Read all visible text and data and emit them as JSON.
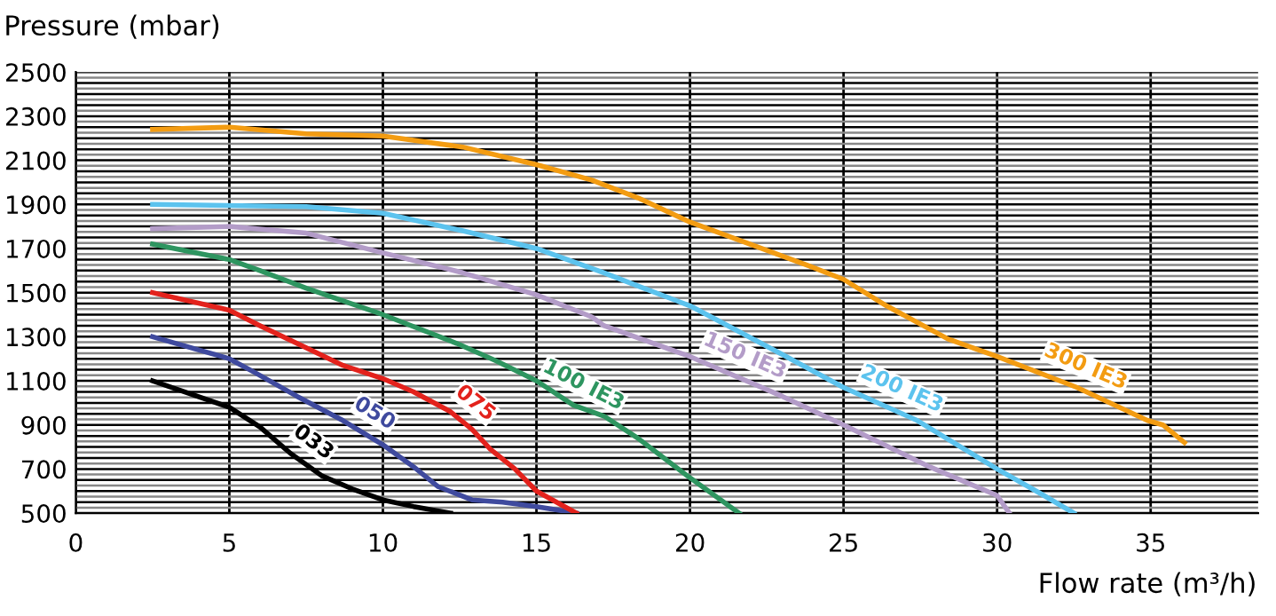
{
  "chart_data": {
    "type": "line",
    "ylabel": "Pressure (mbar)",
    "xlabel": "Flow rate (m³/h)",
    "xlim": [
      0,
      38.5
    ],
    "xticks": [
      0,
      5,
      10,
      15,
      20,
      25,
      30,
      35
    ],
    "ylim": [
      500,
      2500
    ],
    "yticks": [
      500,
      {
        "value": 525,
        "label": null
      },
      {
        "value": 550,
        "label": null
      },
      {
        "value": 575,
        "label": null
      },
      {
        "value": 600,
        "label": null
      },
      {
        "value": 625,
        "label": null
      },
      {
        "value": 650,
        "label": null
      },
      {
        "value": 675,
        "label": null
      },
      700,
      {
        "value": 725,
        "label": null
      },
      {
        "value": 750,
        "label": null
      },
      {
        "value": 775,
        "label": null
      },
      {
        "value": 800,
        "label": null
      },
      {
        "value": 825,
        "label": null
      },
      {
        "value": 850,
        "label": null
      },
      {
        "value": 875,
        "label": null
      },
      900,
      {
        "value": 925,
        "label": null
      },
      {
        "value": 950,
        "label": null
      },
      {
        "value": 975,
        "label": null
      },
      {
        "value": 1000,
        "label": null
      },
      {
        "value": 1025,
        "label": null
      },
      {
        "value": 1050,
        "label": null
      },
      {
        "value": 1075,
        "label": null
      },
      1100,
      {
        "value": 1125,
        "label": null
      },
      {
        "value": 1150,
        "label": null
      },
      {
        "value": 1175,
        "label": null
      },
      {
        "value": 1200,
        "label": null
      },
      {
        "value": 1225,
        "label": null
      },
      {
        "value": 1250,
        "label": null
      },
      {
        "value": 1275,
        "label": null
      },
      1300,
      {
        "value": 1325,
        "label": null
      },
      {
        "value": 1350,
        "label": null
      },
      {
        "value": 1375,
        "label": null
      },
      {
        "value": 1400,
        "label": null
      },
      {
        "value": 1425,
        "label": null
      },
      {
        "value": 1450,
        "label": null
      },
      {
        "value": 1475,
        "label": null
      },
      1500,
      {
        "value": 1525,
        "label": null
      },
      {
        "value": 1550,
        "label": null
      },
      {
        "value": 1575,
        "label": null
      },
      {
        "value": 1600,
        "label": null
      },
      {
        "value": 1625,
        "label": null
      },
      {
        "value": 1650,
        "label": null
      },
      {
        "value": 1675,
        "label": null
      },
      1700,
      {
        "value": 1725,
        "label": null
      },
      {
        "value": 1750,
        "label": null
      },
      {
        "value": 1775,
        "label": null
      },
      {
        "value": 1800,
        "label": null
      },
      {
        "value": 1825,
        "label": null
      },
      {
        "value": 1850,
        "label": null
      },
      {
        "value": 1875,
        "label": null
      },
      1900,
      {
        "value": 1925,
        "label": null
      },
      {
        "value": 1950,
        "label": null
      },
      {
        "value": 1975,
        "label": null
      },
      {
        "value": 2000,
        "label": null
      },
      {
        "value": 2025,
        "label": null
      },
      {
        "value": 2050,
        "label": null
      },
      {
        "value": 2075,
        "label": null
      },
      2100,
      {
        "value": 2125,
        "label": null
      },
      {
        "value": 2150,
        "label": null
      },
      {
        "value": 2175,
        "label": null
      },
      {
        "value": 2200,
        "label": null
      },
      {
        "value": 2225,
        "label": null
      },
      {
        "value": 2250,
        "label": null
      },
      {
        "value": 2275,
        "label": null
      },
      2300,
      {
        "value": 2325,
        "label": null
      },
      {
        "value": 2350,
        "label": null
      },
      {
        "value": 2375,
        "label": null
      },
      {
        "value": 2400,
        "label": null
      },
      {
        "value": 2425,
        "label": null
      },
      {
        "value": 2450,
        "label": null
      },
      {
        "value": 2475,
        "label": null
      },
      2500
    ],
    "grid": true,
    "legend": false,
    "marker": "none",
    "line_style": "solid",
    "series": [
      {
        "color": "#000000",
        "x": [
          2.5,
          5,
          6,
          7,
          8,
          9,
          10,
          11,
          12.2
        ],
        "values": [
          1100,
          980,
          890,
          770,
          670,
          610,
          560,
          530,
          500
        ]
      },
      {
        "color": "#3f4a9e",
        "x": [
          2.5,
          5,
          5.8,
          7.2,
          8.7,
          10,
          11,
          11.8,
          12.9,
          13.9,
          15,
          16.3
        ],
        "values": [
          1300,
          1200,
          1140,
          1030,
          920,
          810,
          710,
          620,
          560,
          550,
          530,
          500
        ]
      },
      {
        "color": "#e3221c",
        "x": [
          2.5,
          5,
          6,
          7.5,
          8.7,
          10,
          11,
          12.2,
          12.9,
          13.5,
          14.3,
          15,
          16.3
        ],
        "values": [
          1500,
          1420,
          1350,
          1250,
          1170,
          1110,
          1050,
          960,
          880,
          790,
          700,
          600,
          500
        ]
      },
      {
        "color": "#2e9560",
        "x": [
          2.5,
          5,
          6,
          7.5,
          10,
          12.4,
          13.7,
          15,
          16.2,
          17.2,
          18.3,
          20,
          21.6
        ],
        "values": [
          1720,
          1650,
          1600,
          1520,
          1400,
          1270,
          1190,
          1100,
          990,
          940,
          840,
          660,
          500
        ]
      },
      {
        "color": "#b39cc8",
        "x": [
          2.5,
          5,
          7.5,
          10,
          12.6,
          15,
          16.8,
          17.2,
          20,
          23,
          25,
          27.8,
          30,
          30.4
        ],
        "values": [
          1790,
          1800,
          1770,
          1680,
          1590,
          1490,
          1390,
          1350,
          1210,
          1030,
          900,
          710,
          580,
          500
        ]
      },
      {
        "color": "#5cc3ee",
        "x": [
          2.5,
          7.5,
          10,
          12.6,
          15,
          17.2,
          18.3,
          20,
          23,
          25,
          27.4,
          30,
          31.4,
          32.5
        ],
        "values": [
          1900,
          1890,
          1860,
          1780,
          1700,
          1590,
          1530,
          1440,
          1220,
          1070,
          920,
          700,
          590,
          500
        ]
      },
      {
        "color": "#f39c12",
        "x": [
          2.5,
          5,
          7.5,
          10,
          12.6,
          15,
          16.8,
          18.3,
          20,
          23.9,
          25,
          26.4,
          28.4,
          30,
          32.6,
          34.9,
          35.4,
          36.1
        ],
        "values": [
          2240,
          2250,
          2220,
          2210,
          2160,
          2080,
          2010,
          1930,
          1820,
          1620,
          1560,
          1440,
          1290,
          1210,
          1070,
          920,
          900,
          820
        ]
      }
    ],
    "annotations": [
      {
        "text": "033",
        "x": 7.3,
        "y": 740
      },
      {
        "text": "050",
        "x": 9.35,
        "y": 865
      },
      {
        "text": "075",
        "x": 12.55,
        "y": 920
      },
      {
        "text": "100 IE3",
        "x": 16.2,
        "y": 990
      },
      {
        "text": "150 IE3",
        "x": 21.5,
        "y": 1120
      },
      {
        "text": "200 IE3",
        "x": 26.6,
        "y": 970
      },
      {
        "text": "300 IE3",
        "x": 32.6,
        "y": 1070
      }
    ]
  }
}
